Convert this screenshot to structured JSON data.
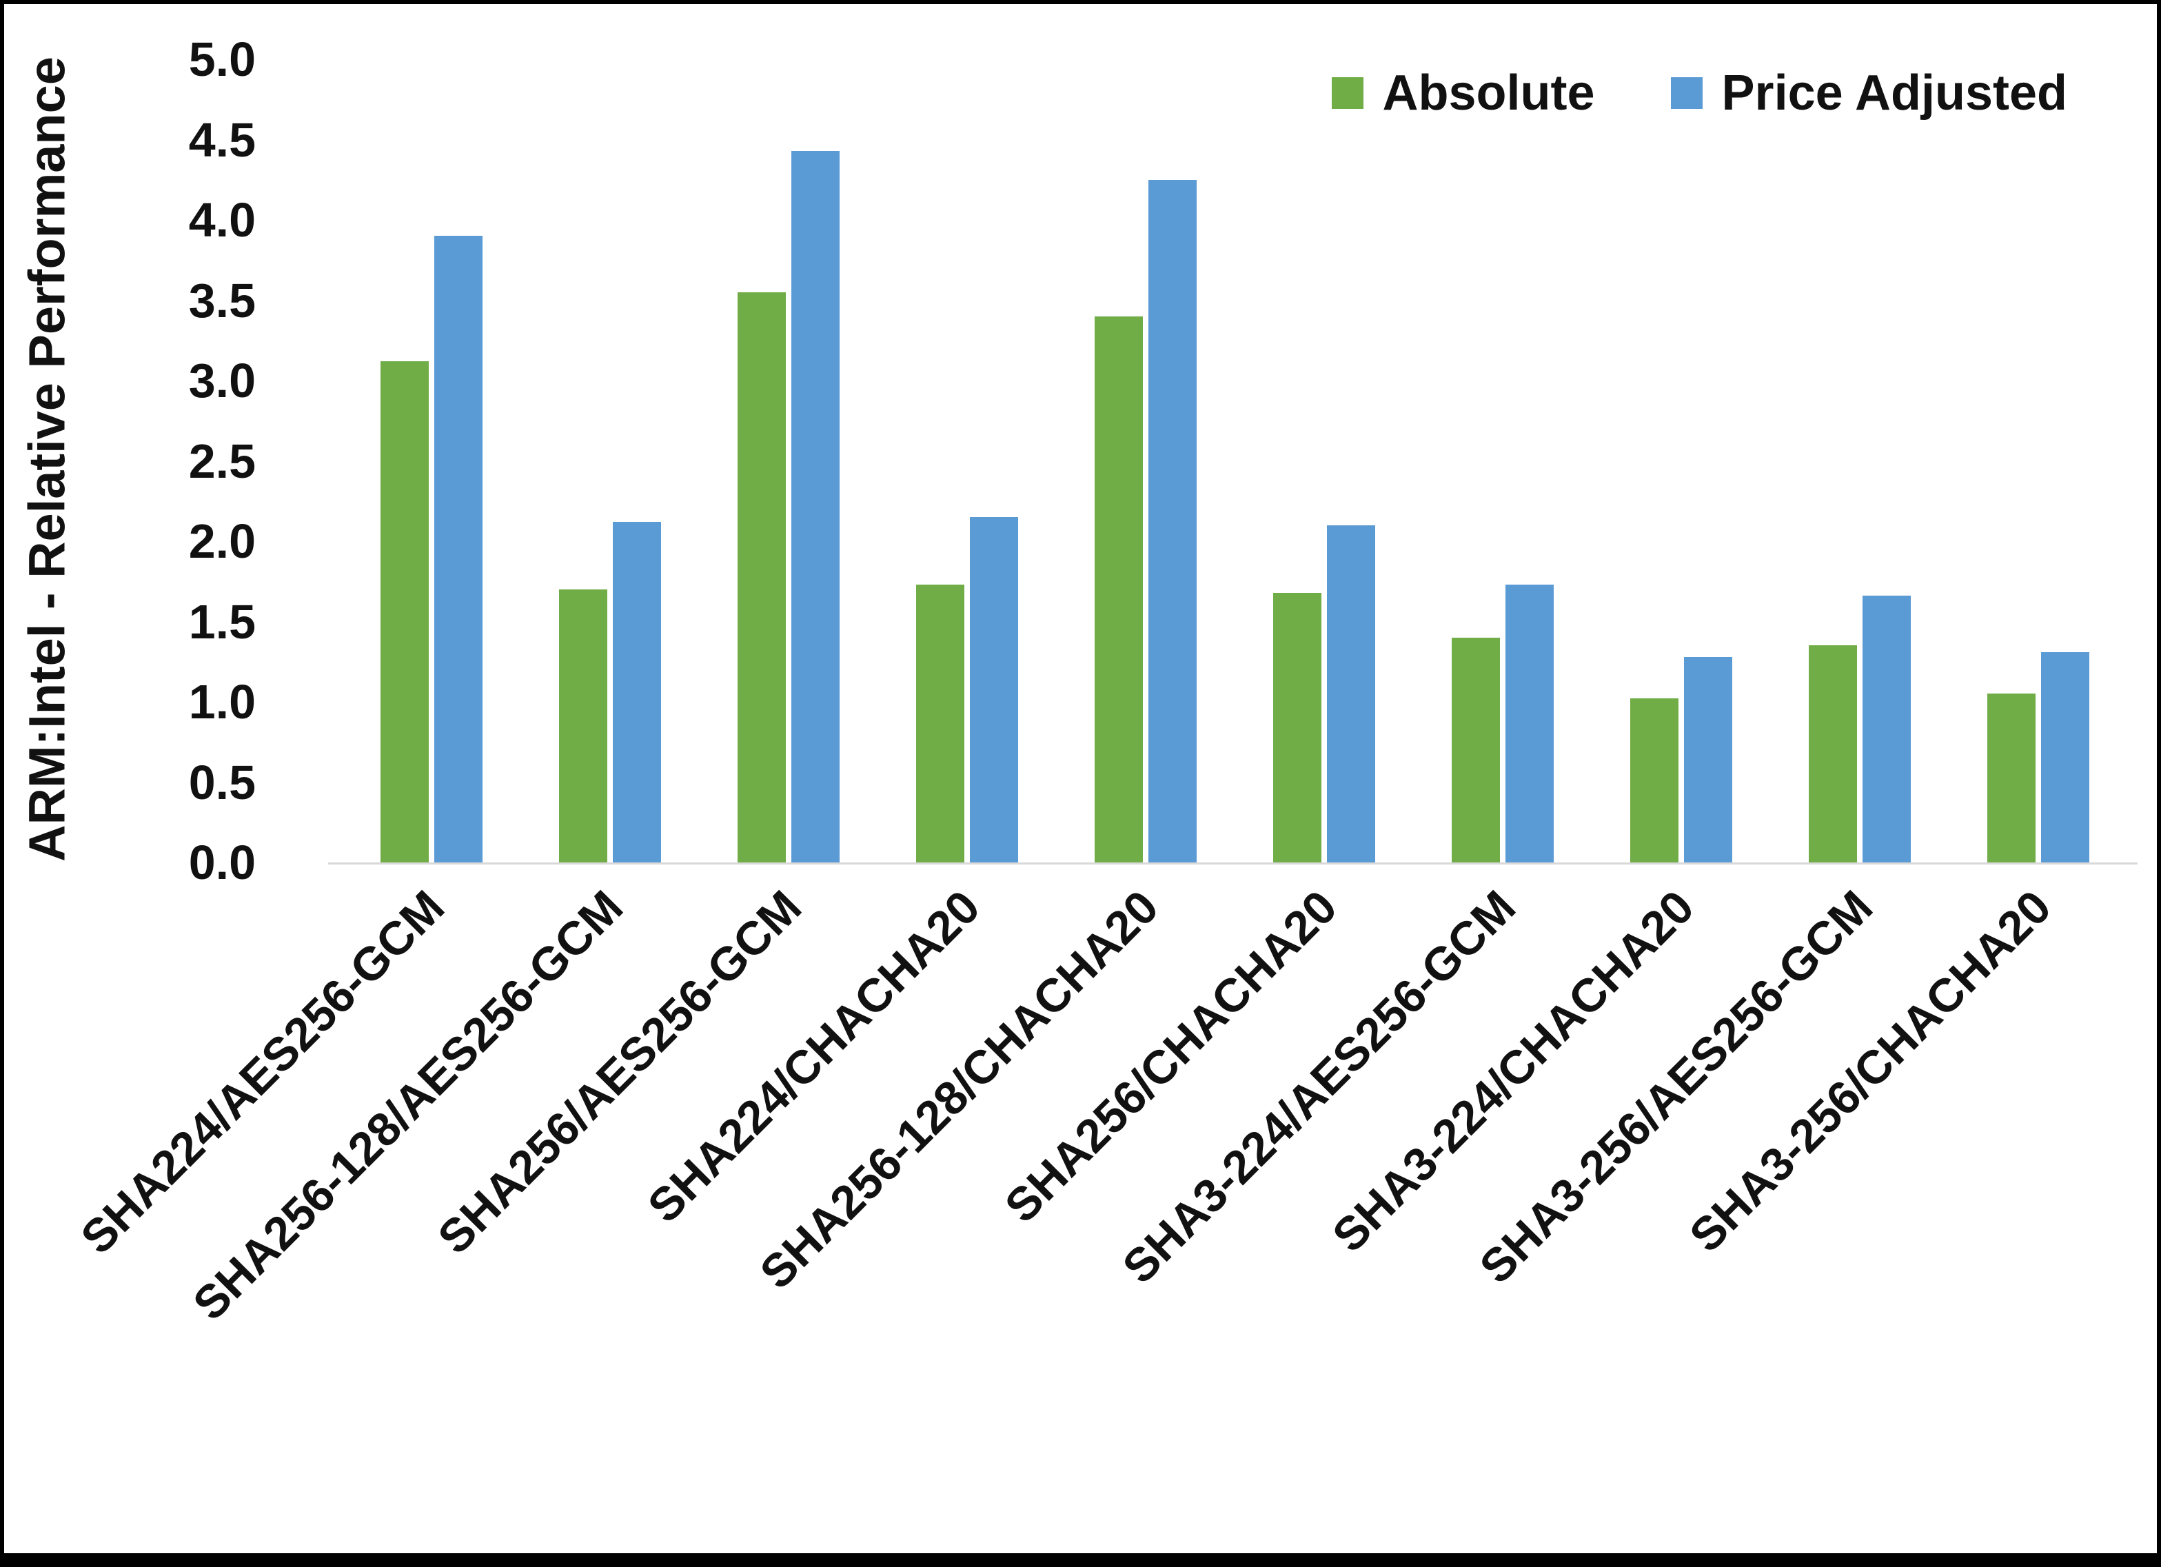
{
  "figure": {
    "background": "#ffffff",
    "border_color": "#000000"
  },
  "chart_data": {
    "type": "bar",
    "title": "",
    "ylabel": "ARM:Intel - Relative Performance",
    "xlabel": "",
    "ylim": [
      0.0,
      5.0
    ],
    "ytick_step": 0.5,
    "ytick_labels": [
      "5.0",
      "4.5",
      "4.0",
      "3.5",
      "3.0",
      "2.5",
      "2.0",
      "1.5",
      "1.0",
      "0.5",
      "0.0"
    ],
    "grid": false,
    "legend_position": "top-right",
    "axis_line_color": "#d9d9d9",
    "text_color": "#111111",
    "categories": [
      "SHA224/AES256-GCM",
      "SHA256-128/AES256-GCM",
      "SHA256/AES256-GCM",
      "SHA224/CHACHA20",
      "SHA256-128/CHACHA20",
      "SHA256/CHACHA20",
      "SHA3-224/AES256-GCM",
      "SHA3-224/CHACHA20",
      "SHA3-256/AES256-GCM",
      "SHA3-256/CHACHA20"
    ],
    "series": [
      {
        "name": "Absolute",
        "color": "#70AD47",
        "values": [
          3.12,
          1.7,
          3.55,
          1.73,
          3.4,
          1.68,
          1.4,
          1.02,
          1.35,
          1.05
        ]
      },
      {
        "name": "Price Adjusted",
        "color": "#5B9BD5",
        "values": [
          3.9,
          2.12,
          4.43,
          2.15,
          4.25,
          2.1,
          1.73,
          1.28,
          1.66,
          1.31
        ]
      }
    ]
  }
}
